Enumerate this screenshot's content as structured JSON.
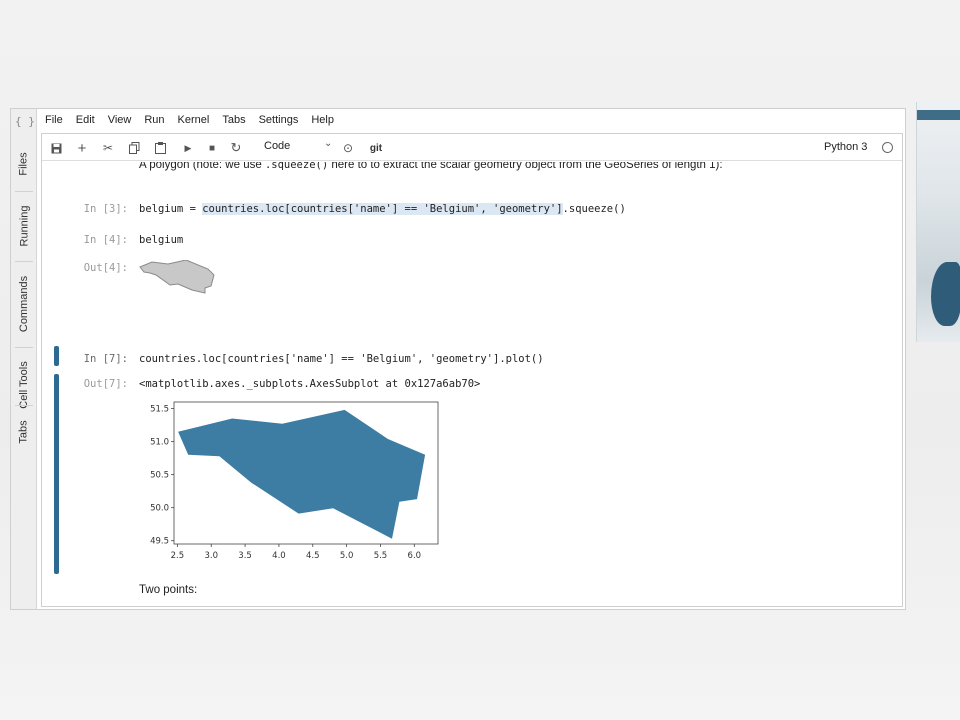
{
  "menu": [
    "File",
    "Edit",
    "View",
    "Run",
    "Kernel",
    "Tabs",
    "Settings",
    "Help"
  ],
  "sidebar": [
    "Files",
    "Running",
    "Commands",
    "Cell Tools",
    "Tabs"
  ],
  "toolbar": {
    "cell_type": "Code",
    "git_label": "git",
    "kernel_name": "Python 3",
    "icons": [
      "save-icon",
      "add-icon",
      "cut-icon",
      "copy-icon",
      "paste-icon",
      "run-icon",
      "stop-icon",
      "restart-icon",
      "chevron-down-icon",
      "history-icon"
    ]
  },
  "notebook": {
    "md_top_pre": "A polygon (note: we use ",
    "md_top_code": ".squeeze()",
    "md_top_post": " here to to extract the scalar geometry object from the GeoSeries of length 1):",
    "cells": [
      {
        "prompt": "In [3]:",
        "pre": "belgium = ",
        "hl": "countries.loc[countries['name'] == 'Belgium', 'geometry']",
        "post": ".squeeze()"
      },
      {
        "prompt": "In [4]:",
        "code": "belgium"
      },
      {
        "out_prompt": "Out[4]:"
      },
      {
        "prompt": "In [7]:",
        "code": "countries.loc[countries['name'] == 'Belgium', 'geometry'].plot()"
      },
      {
        "out_prompt": "Out[7]:",
        "text": "<matplotlib.axes._subplots.AxesSubplot at 0x127a6ab70>"
      }
    ],
    "md_bottom": "Two points:"
  },
  "chart_data": {
    "type": "area",
    "fill_color": "#3d7ca3",
    "xticks": [
      "2.5",
      "3.0",
      "3.5",
      "4.0",
      "4.5",
      "5.0",
      "5.5",
      "6.0"
    ],
    "yticks": [
      "51.5",
      "51.0",
      "50.5",
      "50.0",
      "49.5"
    ],
    "xlim": [
      2.45,
      6.35
    ],
    "ylim": [
      49.45,
      51.6
    ],
    "polygon": [
      [
        2.51,
        51.15
      ],
      [
        3.31,
        51.35
      ],
      [
        4.05,
        51.27
      ],
      [
        4.97,
        51.48
      ],
      [
        5.61,
        51.04
      ],
      [
        6.16,
        50.8
      ],
      [
        6.04,
        50.13
      ],
      [
        5.78,
        50.09
      ],
      [
        5.67,
        49.53
      ],
      [
        4.8,
        49.99
      ],
      [
        4.29,
        49.91
      ],
      [
        3.59,
        50.38
      ],
      [
        3.12,
        50.78
      ],
      [
        2.66,
        50.8
      ]
    ],
    "title": "",
    "xlabel": "",
    "ylabel": ""
  }
}
